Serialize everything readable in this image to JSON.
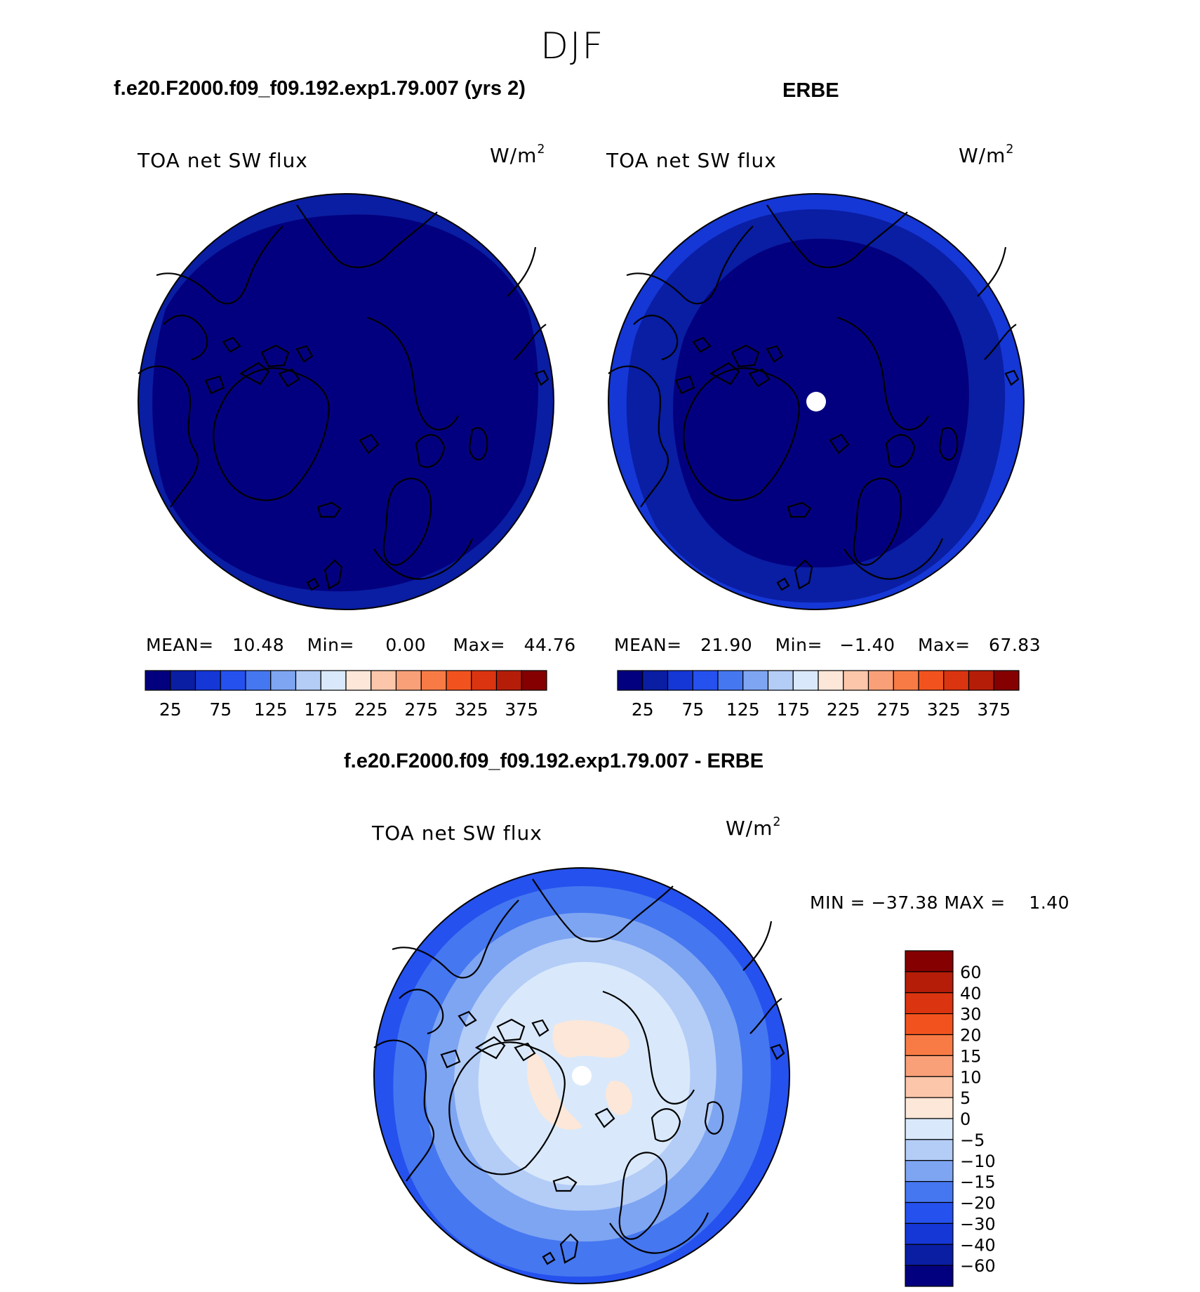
{
  "figure": {
    "season": "DJF",
    "panel_left_title": "f.e20.F2000.f09_f09.192.exp1.79.007 (yrs 2)",
    "panel_right_title": "ERBE",
    "panel_diff_title": "f.e20.F2000.f09_f09.192.exp1.79.007 - ERBE"
  },
  "panels": [
    {
      "id": "model",
      "variable": "TOA net SW flux",
      "units_base": "W/m",
      "units_exp": "2",
      "stats": {
        "mean_label": "MEAN=",
        "mean": "10.48",
        "min_label": "Min=",
        "min": "0.00",
        "max_label": "Max=",
        "max": "44.76"
      },
      "pole_gap": false
    },
    {
      "id": "obs",
      "variable": "TOA net SW flux",
      "units_base": "W/m",
      "units_exp": "2",
      "stats": {
        "mean_label": "MEAN=",
        "mean": "21.90",
        "min_label": "Min=",
        "min": "−1.40",
        "max_label": "Max=",
        "max": "67.83"
      },
      "pole_gap": true
    }
  ],
  "diff_panel": {
    "variable": "TOA net SW flux",
    "units_base": "W/m",
    "units_exp": "2",
    "minmax_text": "MIN = −37.38 MAX =    1.40",
    "pole_gap": true
  },
  "chart_data": [
    {
      "type": "polar-contour-map",
      "projection": "north-polar-stereographic",
      "title": "f.e20.F2000.f09_f09.192.exp1.79.007 (yrs 2)",
      "variable": "TOA net SW flux",
      "units": "W/m2",
      "mean": 10.48,
      "min": 0.0,
      "max": 44.76,
      "colorbar": {
        "orientation": "horizontal",
        "levels": [
          25,
          50,
          75,
          100,
          125,
          150,
          175,
          200,
          225,
          250,
          275,
          300,
          325,
          350,
          375
        ],
        "tick_labels": [
          "25",
          "75",
          "125",
          "175",
          "225",
          "275",
          "325",
          "375"
        ],
        "colors": [
          "#03007f",
          "#0a1ea3",
          "#1537d6",
          "#2551ee",
          "#4577f0",
          "#7ea5f2",
          "#b4cdf7",
          "#d9e9fb",
          "#fde7d8",
          "#fbc6aa",
          "#f9a078",
          "#f87b45",
          "#f2531e",
          "#db3410",
          "#b51d09",
          "#850000"
        ]
      },
      "regions": [
        {
          "level_band": "0-25",
          "extent": "polar cap inside ~55N"
        },
        {
          "level_band": "25-50",
          "extent": "outer ring ~45N-55N"
        }
      ]
    },
    {
      "type": "polar-contour-map",
      "projection": "north-polar-stereographic",
      "title": "ERBE",
      "variable": "TOA net SW flux",
      "units": "W/m2",
      "mean": 21.9,
      "min": -1.4,
      "max": 67.83,
      "colorbar": {
        "orientation": "horizontal",
        "levels": [
          25,
          50,
          75,
          100,
          125,
          150,
          175,
          200,
          225,
          250,
          275,
          300,
          325,
          350,
          375
        ],
        "tick_labels": [
          "25",
          "75",
          "125",
          "175",
          "225",
          "275",
          "325",
          "375"
        ],
        "colors": [
          "#03007f",
          "#0a1ea3",
          "#1537d6",
          "#2551ee",
          "#4577f0",
          "#7ea5f2",
          "#b4cdf7",
          "#d9e9fb",
          "#fde7d8",
          "#fbc6aa",
          "#f9a078",
          "#f87b45",
          "#f2531e",
          "#db3410",
          "#b51d09",
          "#850000"
        ]
      },
      "regions": [
        {
          "level_band": "0-25",
          "extent": "polar cap inside ~62N"
        },
        {
          "level_band": "25-50",
          "extent": "ring ~50N-62N"
        },
        {
          "level_band": "50-75",
          "extent": "outer ring ~45N-50N"
        }
      ]
    },
    {
      "type": "polar-contour-map",
      "projection": "north-polar-stereographic",
      "title": "f.e20.F2000.f09_f09.192.exp1.79.007 - ERBE",
      "variable": "TOA net SW flux",
      "units": "W/m2",
      "min": -37.38,
      "max": 1.4,
      "colorbar": {
        "orientation": "vertical",
        "levels": [
          60,
          40,
          30,
          20,
          15,
          10,
          5,
          0,
          -5,
          -10,
          -15,
          -20,
          -30,
          -40,
          -60
        ],
        "tick_labels": [
          "60",
          "40",
          "30",
          "20",
          "15",
          "10",
          "5",
          "0",
          "−5",
          "−10",
          "−15",
          "−20",
          "−30",
          "−40",
          "−60"
        ],
        "colors": [
          "#850000",
          "#b51d09",
          "#db3410",
          "#f2531e",
          "#f87b45",
          "#f9a078",
          "#fbc6aa",
          "#fde7d8",
          "#d9e9fb",
          "#b4cdf7",
          "#7ea5f2",
          "#4577f0",
          "#2551ee",
          "#1537d6",
          "#0a1ea3",
          "#03007f"
        ]
      },
      "regions": [
        {
          "level_band": "0 to 5",
          "extent": "patches near pole"
        },
        {
          "level_band": "-5 to 0",
          "extent": "central Arctic"
        },
        {
          "level_band": "-10 to -5",
          "extent": "ring"
        },
        {
          "level_band": "-15 to -10",
          "extent": "ring"
        },
        {
          "level_band": "-20 to -15",
          "extent": "ring"
        },
        {
          "level_band": "-30 to -20",
          "extent": "outer ring"
        }
      ]
    }
  ]
}
